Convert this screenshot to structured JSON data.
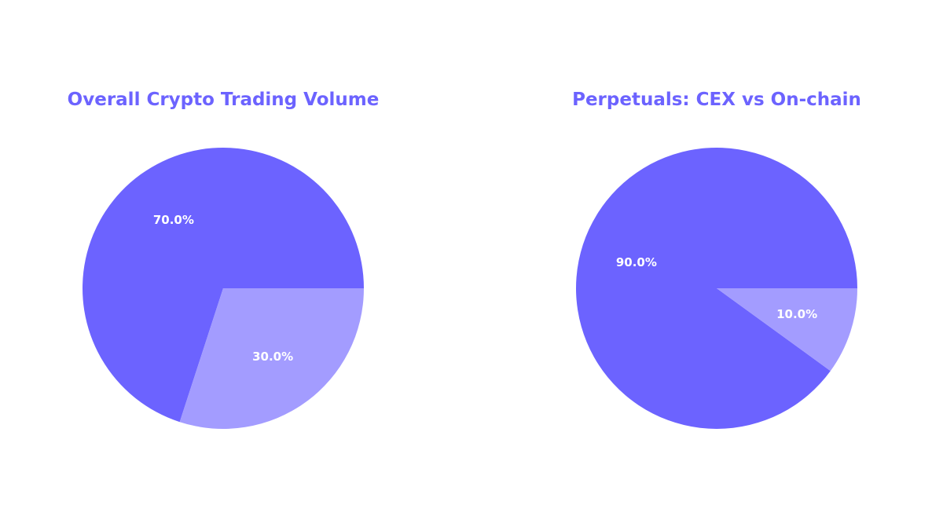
{
  "colors": {
    "title": "#6c63ff",
    "primary": "#6c63ff",
    "secondary": "#a39cff",
    "label": "#ffffff",
    "background": "#ffffff"
  },
  "chart_data": [
    {
      "type": "pie",
      "title": "Overall Crypto Trading Volume",
      "values": [
        70,
        30
      ],
      "labels": [
        "70.0%",
        "30.0%"
      ],
      "colors": [
        "#6c63ff",
        "#a39cff"
      ],
      "start_angle_deg": 0,
      "direction": "counterclockwise"
    },
    {
      "type": "pie",
      "title": "Perpetuals: CEX vs On-chain",
      "values": [
        90,
        10
      ],
      "labels": [
        "90.0%",
        "10.0%"
      ],
      "colors": [
        "#6c63ff",
        "#a39cff"
      ],
      "start_angle_deg": 0,
      "direction": "counterclockwise"
    }
  ]
}
